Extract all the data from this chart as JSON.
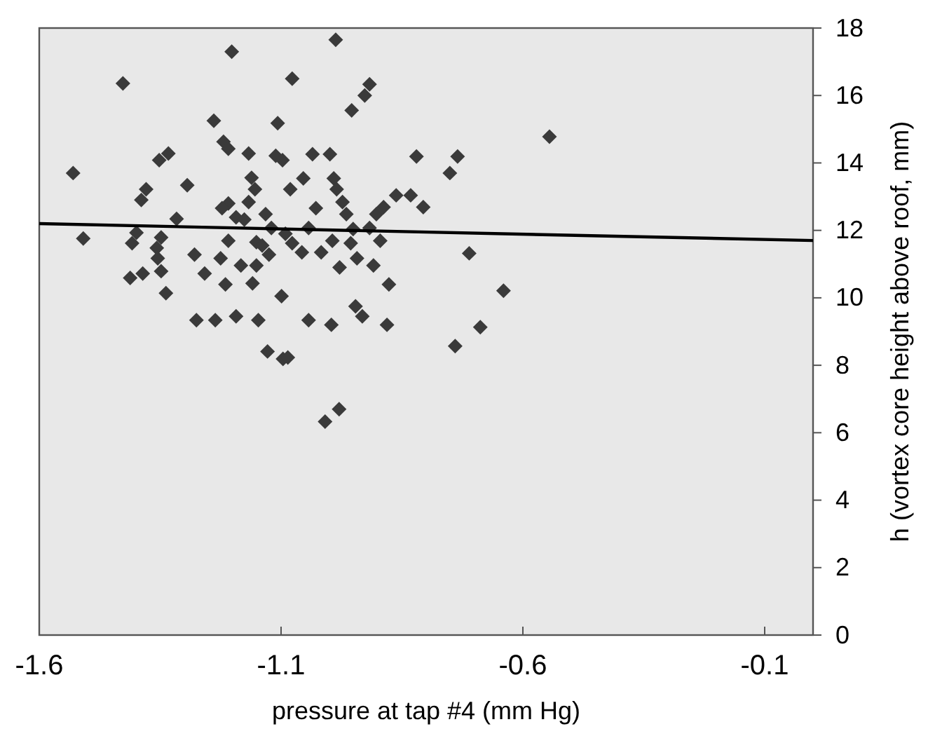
{
  "chart_data": {
    "type": "scatter",
    "xlabel": "pressure at tap #4 (mm Hg)",
    "ylabel": "h (vortex core height above roof, mm)",
    "xlim": [
      -1.6,
      0
    ],
    "xticks": [
      -1.6,
      -1.1,
      -0.6,
      -0.1
    ],
    "ylim": [
      0,
      18
    ],
    "yticks": [
      0,
      2,
      4,
      6,
      8,
      10,
      12,
      14,
      16,
      18
    ],
    "grid": false,
    "series": [
      {
        "marker": "diamond",
        "color": "#3a3a3a",
        "x": [
          -0.987,
          -1.202,
          -1.427,
          -1.077,
          -0.917,
          -0.927,
          -0.954,
          -1.239,
          -1.107,
          -1.219,
          -1.209,
          -1.333,
          -1.352,
          -1.167,
          -1.111,
          -1.097,
          -1.035,
          -0.999,
          -0.82,
          -0.735,
          -0.751,
          -1.53,
          -1.161,
          -1.054,
          -0.991,
          -1.294,
          -1.379,
          -1.389,
          -1.154,
          -1.081,
          -0.985,
          -0.862,
          -0.832,
          -0.806,
          -0.888,
          -0.903,
          -1.209,
          -1.222,
          -1.167,
          -1.028,
          -0.973,
          -0.965,
          -1.316,
          -1.193,
          -1.176,
          -1.132,
          -1.12,
          -1.043,
          -0.917,
          -0.951,
          -1.509,
          -1.399,
          -1.408,
          -1.348,
          -1.357,
          -1.209,
          -1.151,
          -1.091,
          -1.077,
          -0.994,
          -0.956,
          -0.895,
          -1.139,
          -1.125,
          -1.279,
          -1.225,
          -1.057,
          -1.017,
          -1.355,
          -0.711,
          -1.151,
          -1.183,
          -0.943,
          -1.348,
          -1.258,
          -1.386,
          -1.412,
          -0.979,
          -0.909,
          -1.215,
          -1.159,
          -0.877,
          -1.338,
          -1.099,
          -0.946,
          -0.932,
          -1.275,
          -1.236,
          -1.193,
          -1.147,
          -1.043,
          -0.996,
          -0.881,
          -0.74,
          -1.128,
          -1.096,
          -1.086,
          -0.545,
          -0.64,
          -0.688,
          -0.98,
          -1.009
        ],
        "values": [
          17.65,
          17.3,
          16.36,
          16.5,
          16.33,
          16.0,
          15.56,
          15.25,
          15.18,
          14.63,
          14.42,
          14.28,
          14.08,
          14.28,
          14.21,
          14.08,
          14.26,
          14.26,
          14.19,
          14.19,
          13.7,
          13.7,
          13.56,
          13.54,
          13.54,
          13.34,
          13.22,
          12.9,
          13.22,
          13.22,
          13.22,
          13.04,
          13.04,
          12.69,
          12.69,
          12.48,
          12.8,
          12.66,
          12.84,
          12.66,
          12.84,
          12.48,
          12.34,
          12.39,
          12.32,
          12.48,
          12.07,
          12.07,
          12.07,
          12.04,
          11.76,
          11.93,
          11.62,
          11.79,
          11.48,
          11.69,
          11.65,
          11.9,
          11.62,
          11.69,
          11.62,
          11.69,
          11.55,
          11.28,
          11.28,
          11.17,
          11.35,
          11.35,
          11.17,
          11.32,
          10.96,
          10.96,
          11.17,
          10.79,
          10.72,
          10.72,
          10.59,
          10.9,
          10.96,
          10.4,
          10.43,
          10.4,
          10.14,
          10.05,
          9.75,
          9.45,
          9.34,
          9.34,
          9.45,
          9.34,
          9.34,
          9.2,
          9.2,
          8.57,
          8.41,
          8.19,
          8.23,
          14.78,
          10.21,
          9.13,
          6.7,
          6.33
        ]
      },
      {
        "type": "line",
        "color": "#000000",
        "x": [
          -1.6,
          0
        ],
        "values": [
          12.2,
          11.7
        ]
      }
    ]
  }
}
